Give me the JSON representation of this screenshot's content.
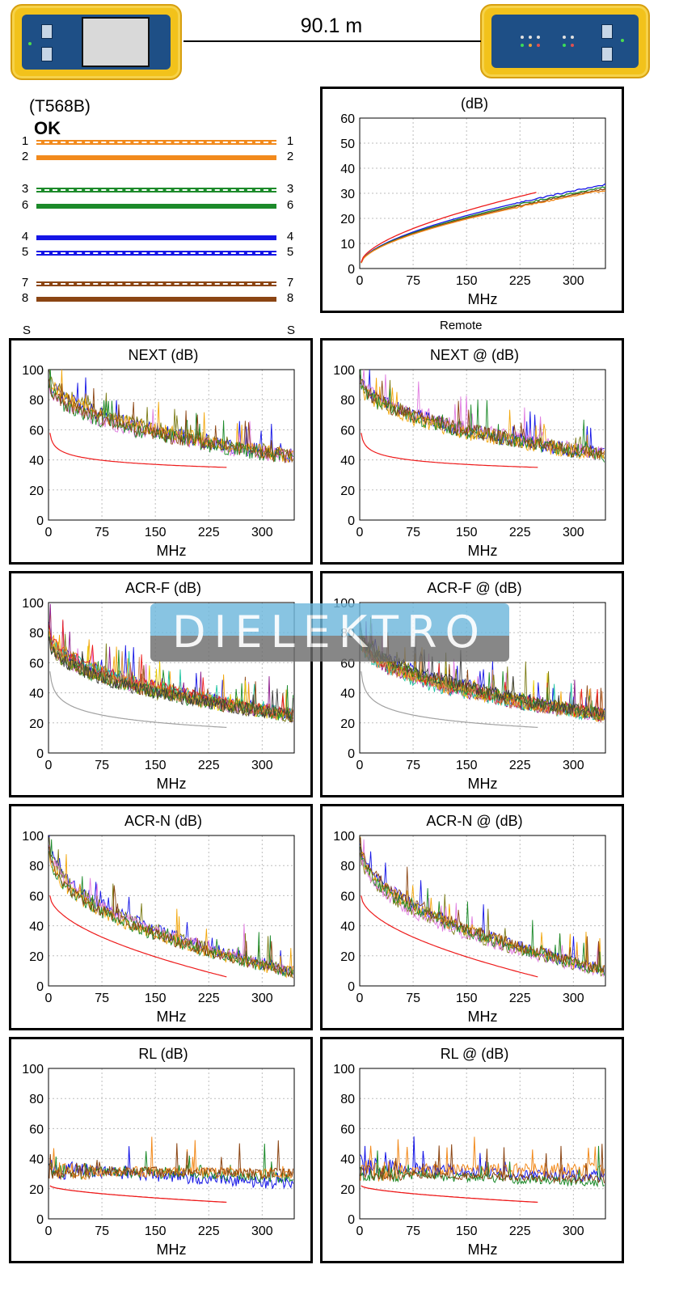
{
  "header": {
    "length": "90.1 m",
    "standard": "(T568B)",
    "status": "OK",
    "shield_left": "S",
    "shield_right": "S",
    "remote_label": "Remote"
  },
  "wiremap": [
    {
      "left": "1",
      "right": "1",
      "color": "#f28a1c",
      "striped": true
    },
    {
      "left": "2",
      "right": "2",
      "color": "#f28a1c",
      "striped": false
    },
    {
      "left": "3",
      "right": "3",
      "color": "#1c8a2a",
      "striped": true
    },
    {
      "left": "6",
      "right": "6",
      "color": "#1c8a2a",
      "striped": false
    },
    {
      "left": "4",
      "right": "4",
      "color": "#1515e6",
      "striped": false
    },
    {
      "left": "5",
      "right": "5",
      "color": "#1515e6",
      "striped": true
    },
    {
      "left": "7",
      "right": "7",
      "color": "#8b4513",
      "striped": true
    },
    {
      "left": "8",
      "right": "8",
      "color": "#8b4513",
      "striped": false
    }
  ],
  "watermark": "DIELEKTRO",
  "colors": {
    "pair12": "#f28a1c",
    "pair36": "#1c8a2a",
    "pair45": "#1515e6",
    "pair78": "#8b4513",
    "limit": "#ee1b1b",
    "limit_acrf": "#a0a0a0",
    "combos": [
      "#1515e6",
      "#7a7a14",
      "#e07be0",
      "#f2a60a",
      "#1c8a2a",
      "#8b4513"
    ],
    "acrf_combos": [
      "#1515e6",
      "#e07be0",
      "#f2a60a",
      "#8b1a8b",
      "#1cc4a0",
      "#8b4513",
      "#e6c800",
      "#ee1b1b",
      "#1c8a2a",
      "#d48a5a",
      "#7a7a14",
      "#3a3a3a"
    ]
  },
  "chart_data": [
    {
      "id": "insertion-loss",
      "type": "line",
      "title": "(dB)",
      "xlabel": "MHz",
      "ylabel": "",
      "xlim": [
        0,
        345
      ],
      "ylim": [
        0,
        60
      ],
      "xticks": [
        0,
        75,
        150,
        225,
        300
      ],
      "yticks": [
        0,
        10,
        20,
        30,
        40,
        50,
        60
      ],
      "grid": true,
      "limit": {
        "x": [
          2,
          250
        ],
        "fn": "il",
        "end": 30.5
      },
      "series": [
        {
          "key": "pair45",
          "x": [
            2,
            350
          ],
          "fn": "il",
          "end": 33.5
        },
        {
          "key": "pair36",
          "x": [
            2,
            350
          ],
          "fn": "il",
          "end": 32.5
        },
        {
          "key": "pair78",
          "x": [
            2,
            350
          ],
          "fn": "il",
          "end": 31.8
        },
        {
          "key": "pair12",
          "x": [
            2,
            350
          ],
          "fn": "il",
          "end": 31.2
        }
      ]
    },
    {
      "id": "next",
      "type": "line",
      "title": "NEXT (dB)",
      "xlabel": "MHz",
      "ylabel": "",
      "xlim": [
        0,
        345
      ],
      "ylim": [
        0,
        100
      ],
      "xticks": [
        0,
        75,
        150,
        225,
        300
      ],
      "yticks": [
        0,
        20,
        40,
        60,
        80,
        100
      ],
      "grid": true,
      "limit": {
        "x": [
          2,
          250
        ],
        "fn": "next",
        "start": 65,
        "end": 35
      },
      "series_family": {
        "count": 6,
        "palette": "combos",
        "start": 95,
        "end": 42,
        "noise": 10
      }
    },
    {
      "id": "next-remote",
      "type": "line",
      "title": "NEXT @ (dB)",
      "xlabel": "MHz",
      "ylabel": "",
      "xlim": [
        0,
        345
      ],
      "ylim": [
        0,
        100
      ],
      "xticks": [
        0,
        75,
        150,
        225,
        300
      ],
      "yticks": [
        0,
        20,
        40,
        60,
        80,
        100
      ],
      "grid": true,
      "limit": {
        "x": [
          2,
          250
        ],
        "fn": "next",
        "start": 65,
        "end": 35
      },
      "series_family": {
        "count": 6,
        "palette": "combos",
        "start": 93,
        "end": 43,
        "noise": 10
      }
    },
    {
      "id": "acr-f",
      "type": "line",
      "title": "ACR-F (dB)",
      "xlabel": "MHz",
      "ylabel": "",
      "xlim": [
        0,
        345
      ],
      "ylim": [
        0,
        100
      ],
      "xticks": [
        0,
        75,
        150,
        225,
        300
      ],
      "yticks": [
        0,
        20,
        40,
        60,
        80,
        100
      ],
      "grid": true,
      "limit": {
        "x": [
          2,
          250
        ],
        "fn": "acrf",
        "start": 63,
        "end": 17
      },
      "series_family": {
        "count": 12,
        "palette": "acrf_combos",
        "start": 80,
        "end": 25,
        "noise": 9
      }
    },
    {
      "id": "acr-f-remote",
      "type": "line",
      "title": "ACR-F @ (dB)",
      "xlabel": "MHz",
      "ylabel": "",
      "xlim": [
        0,
        345
      ],
      "ylim": [
        0,
        100
      ],
      "xticks": [
        0,
        75,
        150,
        225,
        300
      ],
      "yticks": [
        0,
        20,
        40,
        60,
        80,
        100
      ],
      "grid": true,
      "limit": {
        "x": [
          2,
          250
        ],
        "fn": "acrf",
        "start": 63,
        "end": 17
      },
      "series_family": {
        "count": 12,
        "palette": "acrf_combos",
        "start": 80,
        "end": 25,
        "noise": 9
      }
    },
    {
      "id": "acr-n",
      "type": "line",
      "title": "ACR-N (dB)",
      "xlabel": "MHz",
      "ylabel": "",
      "xlim": [
        0,
        345
      ],
      "ylim": [
        0,
        100
      ],
      "xticks": [
        0,
        75,
        150,
        225,
        300
      ],
      "yticks": [
        0,
        20,
        40,
        60,
        80,
        100
      ],
      "grid": true,
      "limit": {
        "x": [
          2,
          250
        ],
        "fn": "acrn",
        "start": 60,
        "end": 6
      },
      "series_family": {
        "count": 6,
        "palette": "combos",
        "start": 95,
        "end": 9,
        "noise": 8
      }
    },
    {
      "id": "acr-n-remote",
      "type": "line",
      "title": "ACR-N @ (dB)",
      "xlabel": "MHz",
      "ylabel": "",
      "xlim": [
        0,
        345
      ],
      "ylim": [
        0,
        100
      ],
      "xticks": [
        0,
        75,
        150,
        225,
        300
      ],
      "yticks": [
        0,
        20,
        40,
        60,
        80,
        100
      ],
      "grid": true,
      "limit": {
        "x": [
          2,
          250
        ],
        "fn": "acrn",
        "start": 60,
        "end": 6
      },
      "series_family": {
        "count": 6,
        "palette": "combos",
        "start": 93,
        "end": 10,
        "noise": 8
      }
    },
    {
      "id": "rl",
      "type": "line",
      "title": "RL (dB)",
      "xlabel": "MHz",
      "ylabel": "",
      "xlim": [
        0,
        345
      ],
      "ylim": [
        0,
        100
      ],
      "xticks": [
        0,
        75,
        150,
        225,
        300
      ],
      "yticks": [
        0,
        20,
        40,
        60,
        80,
        100
      ],
      "grid": true,
      "limit": {
        "x": [
          2,
          250
        ],
        "fn": "rl",
        "start": 22,
        "end": 11
      },
      "series_rl": [
        {
          "key": "pair45",
          "level": 33,
          "end": 23,
          "noise": 8
        },
        {
          "key": "pair36",
          "level": 33,
          "end": 27,
          "noise": 7
        },
        {
          "key": "pair12",
          "level": 32,
          "end": 30,
          "noise": 7
        },
        {
          "key": "pair78",
          "level": 32,
          "end": 30,
          "noise": 7
        }
      ]
    },
    {
      "id": "rl-remote",
      "type": "line",
      "title": "RL @ (dB)",
      "xlabel": "MHz",
      "ylabel": "",
      "xlim": [
        0,
        345
      ],
      "ylim": [
        0,
        100
      ],
      "xticks": [
        0,
        75,
        150,
        225,
        300
      ],
      "yticks": [
        0,
        20,
        40,
        60,
        80,
        100
      ],
      "grid": true,
      "limit": {
        "x": [
          2,
          250
        ],
        "fn": "rl",
        "start": 22,
        "end": 11
      },
      "series_rl": [
        {
          "key": "pair45",
          "level": 35,
          "end": 28,
          "noise": 8
        },
        {
          "key": "pair12",
          "level": 32,
          "end": 33,
          "noise": 9
        },
        {
          "key": "pair36",
          "level": 30,
          "end": 24,
          "noise": 6
        },
        {
          "key": "pair78",
          "level": 31,
          "end": 26,
          "noise": 6
        }
      ]
    }
  ]
}
